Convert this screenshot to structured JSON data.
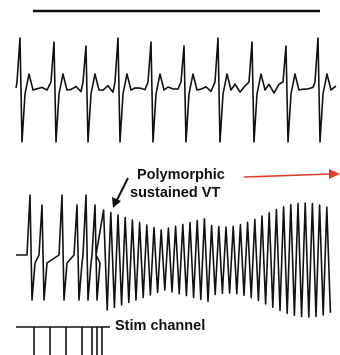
{
  "annotations": {
    "vt_line1": "Polymorphic",
    "vt_line2": "sustained VT",
    "stim": "Stim channel"
  },
  "colors": {
    "trace": "#111111",
    "arrow_red": "#e03c28",
    "background": "#ffffff"
  }
}
